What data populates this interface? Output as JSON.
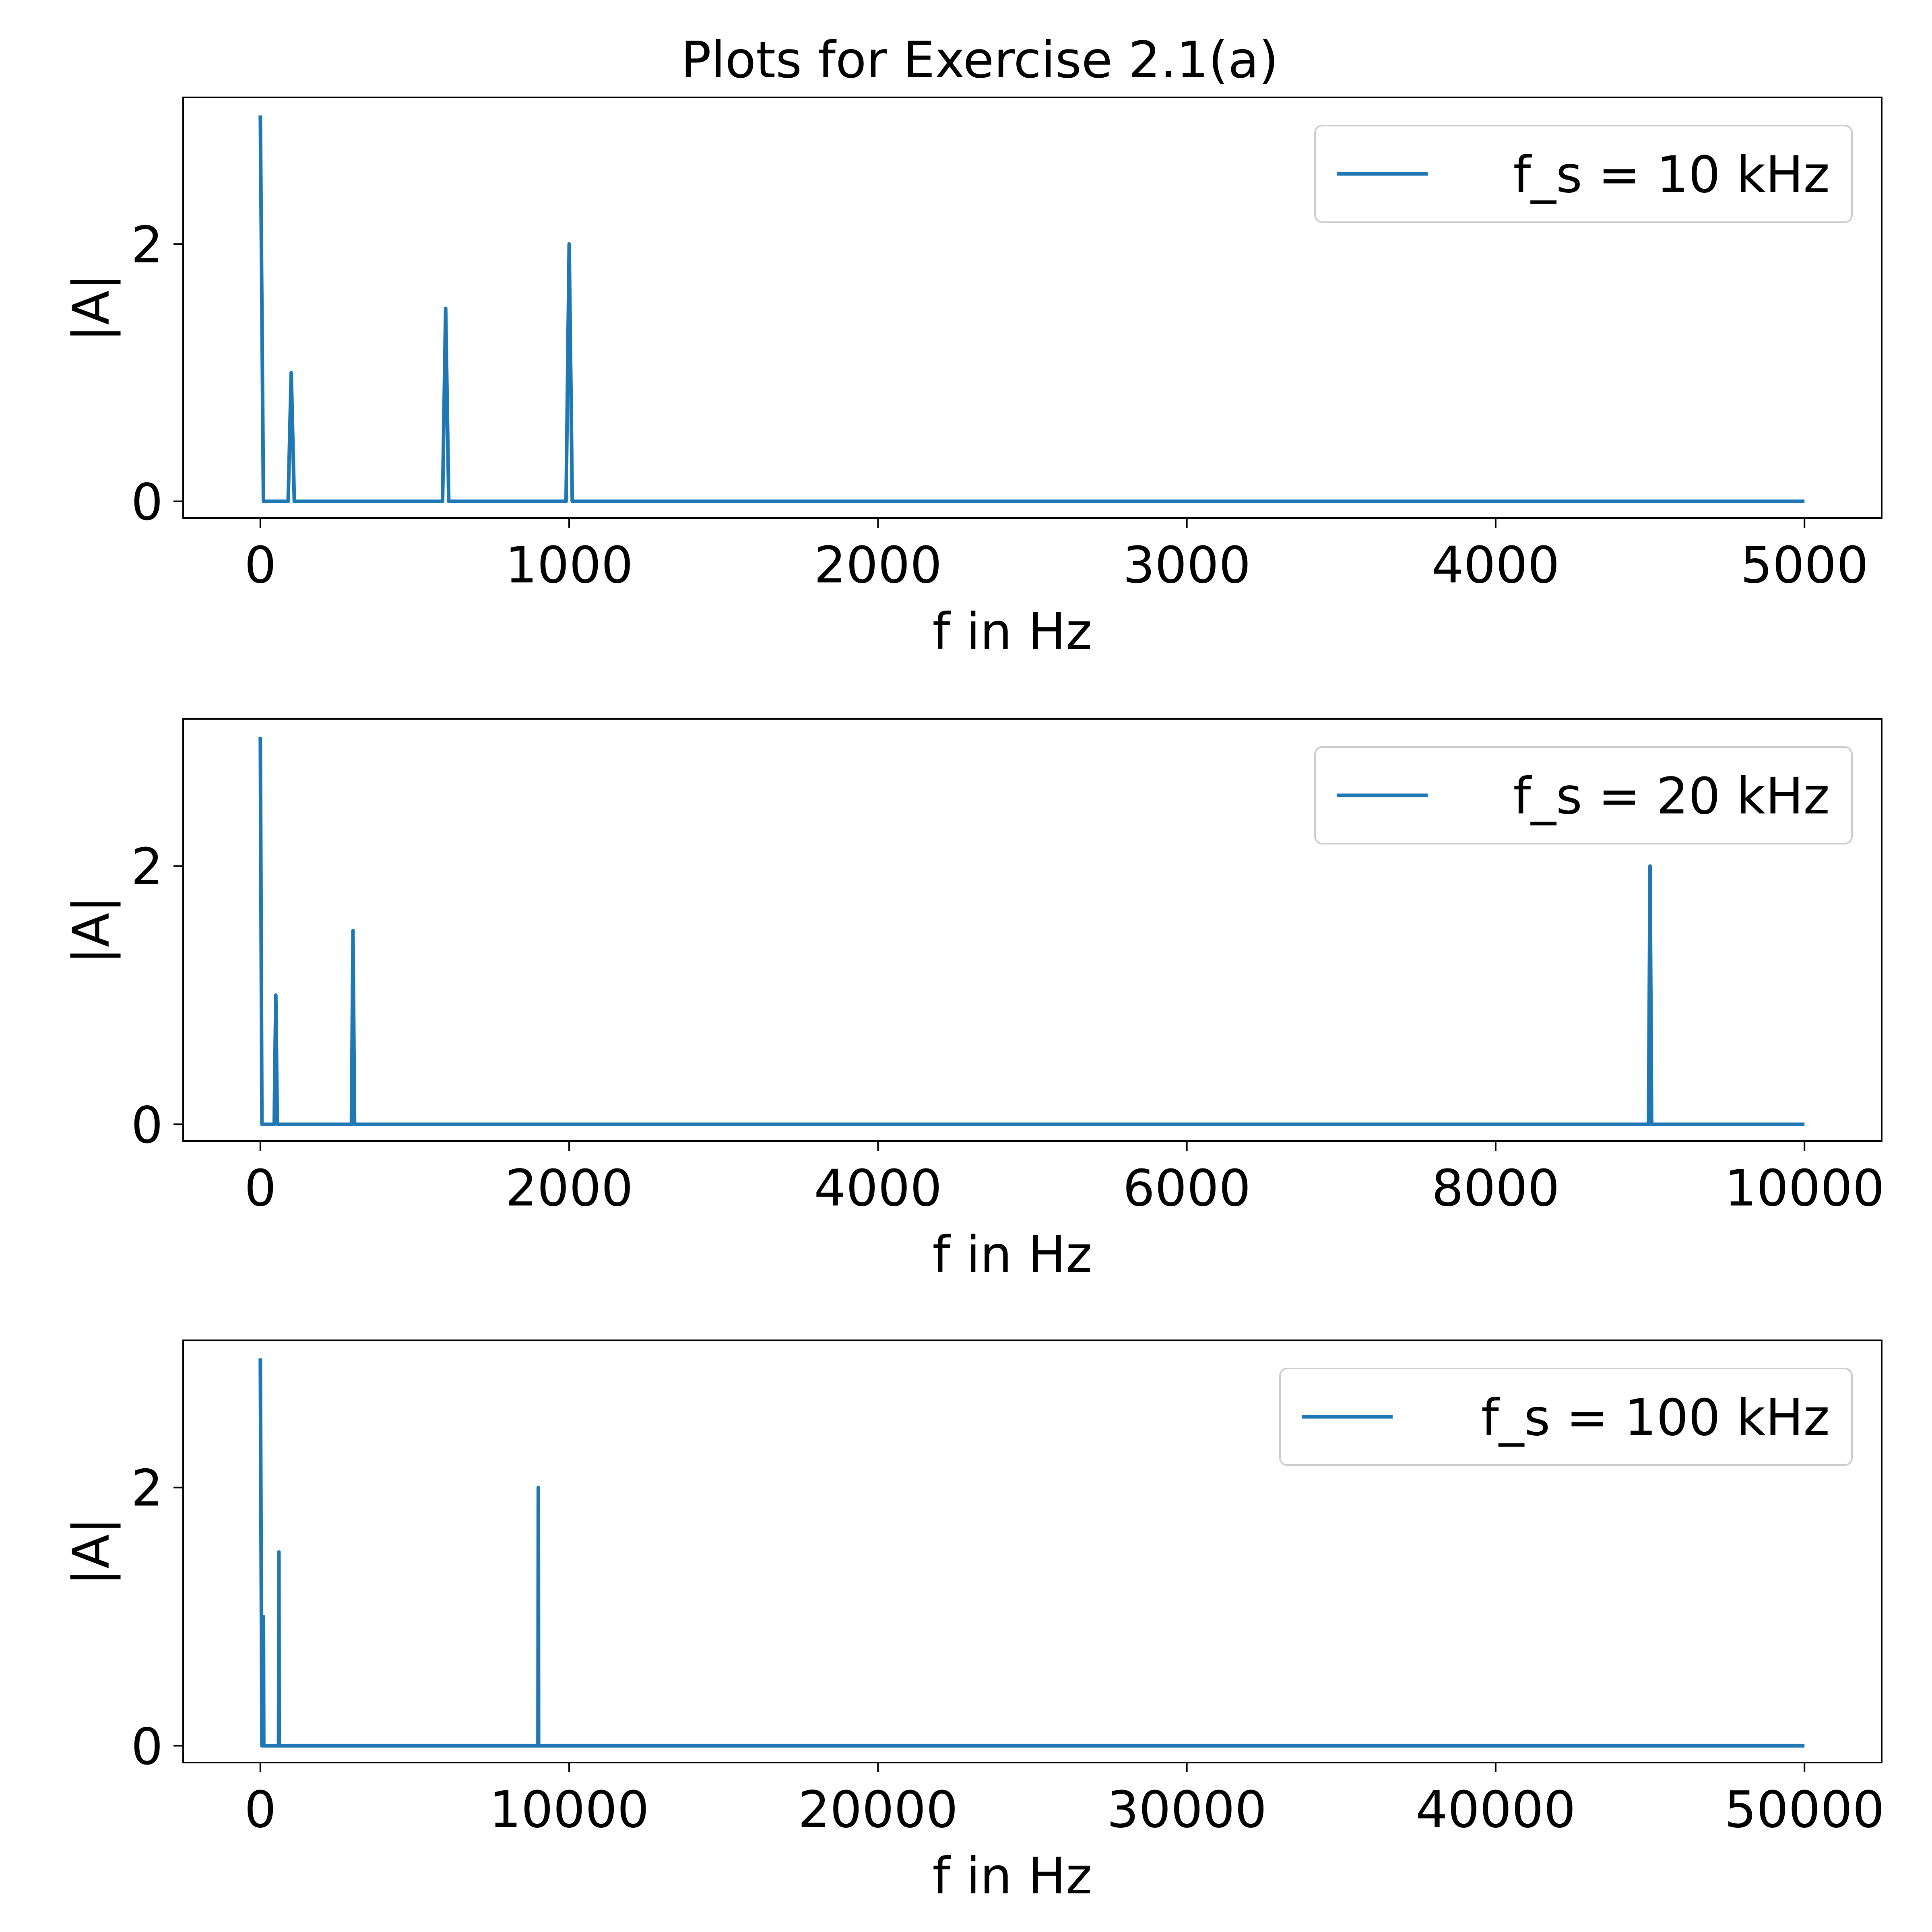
{
  "figure_title": "Plots for Exercise 2.1(a)",
  "line_color": "#1f77b4",
  "chart_data": [
    {
      "type": "line",
      "xlabel": "f in Hz",
      "ylabel": "|A|",
      "xlim": [
        -250,
        5250
      ],
      "ylim": [
        -0.13,
        3.14
      ],
      "xticks": [
        "0",
        "1000",
        "2000",
        "3000",
        "4000",
        "5000"
      ],
      "yticks": [
        "0",
        "2"
      ],
      "legend": "top-right",
      "series": [
        {
          "name": "f_s = 10 kHz",
          "x": [
            0,
            10,
            90,
            100,
            110,
            590,
            600,
            610,
            990,
            1000,
            1010,
            5000
          ],
          "y": [
            3,
            0,
            0,
            1,
            0,
            0,
            1.5,
            0,
            0,
            2,
            0,
            0
          ]
        }
      ]
    },
    {
      "type": "line",
      "xlabel": "f in Hz",
      "ylabel": "|A|",
      "xlim": [
        -500,
        10500
      ],
      "ylim": [
        -0.13,
        3.14
      ],
      "xticks": [
        "0",
        "2000",
        "4000",
        "6000",
        "8000",
        "10000"
      ],
      "yticks": [
        "0",
        "2"
      ],
      "legend": "top-right",
      "series": [
        {
          "name": "f_s = 20 kHz",
          "x": [
            0,
            10,
            90,
            100,
            110,
            590,
            600,
            610,
            8990,
            9000,
            9010,
            10000
          ],
          "y": [
            3,
            0,
            0,
            1,
            0,
            0,
            1.5,
            0,
            0,
            2,
            0,
            0
          ]
        }
      ]
    },
    {
      "type": "line",
      "xlabel": "f in Hz",
      "ylabel": "|A|",
      "xlim": [
        -2500,
        52500
      ],
      "ylim": [
        -0.13,
        3.14
      ],
      "xticks": [
        "0",
        "10000",
        "20000",
        "30000",
        "40000",
        "50000"
      ],
      "yticks": [
        "0",
        "2"
      ],
      "legend": "top-right",
      "series": [
        {
          "name": "f_s = 100 kHz",
          "x": [
            0,
            50,
            90,
            100,
            110,
            590,
            600,
            610,
            8990,
            9000,
            9010,
            50000
          ],
          "y": [
            3,
            0,
            0,
            1,
            0,
            0,
            1.5,
            0,
            0,
            2,
            0,
            0
          ]
        }
      ]
    }
  ]
}
